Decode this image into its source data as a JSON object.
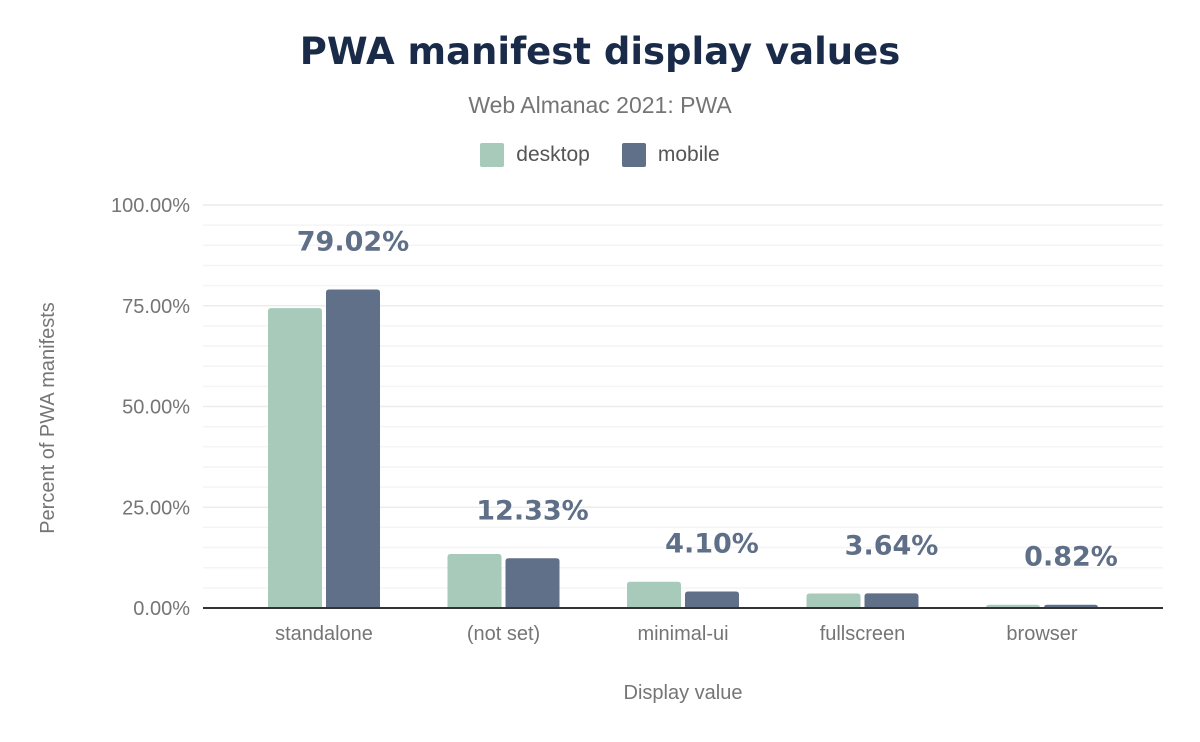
{
  "chart_data": {
    "type": "bar",
    "title": "PWA manifest display values",
    "subtitle": "Web Almanac 2021: PWA",
    "xlabel": "Display value",
    "ylabel": "Percent of PWA manifests",
    "categories": [
      "standalone",
      "(not set)",
      "minimal-ui",
      "fullscreen",
      "browser"
    ],
    "series": [
      {
        "name": "desktop",
        "color": "#a8cabb",
        "values": [
          74.4,
          13.4,
          6.5,
          3.6,
          0.8
        ]
      },
      {
        "name": "mobile",
        "color": "#607089",
        "values": [
          79.02,
          12.33,
          4.1,
          3.64,
          0.82
        ]
      }
    ],
    "data_labels": [
      "79.02%",
      "12.33%",
      "4.10%",
      "3.64%",
      "0.82%"
    ],
    "yticks": [
      "0.00%",
      "25.00%",
      "50.00%",
      "75.00%",
      "100.00%"
    ],
    "ylim": [
      0,
      100
    ],
    "grid": true,
    "legend": "top-center"
  }
}
